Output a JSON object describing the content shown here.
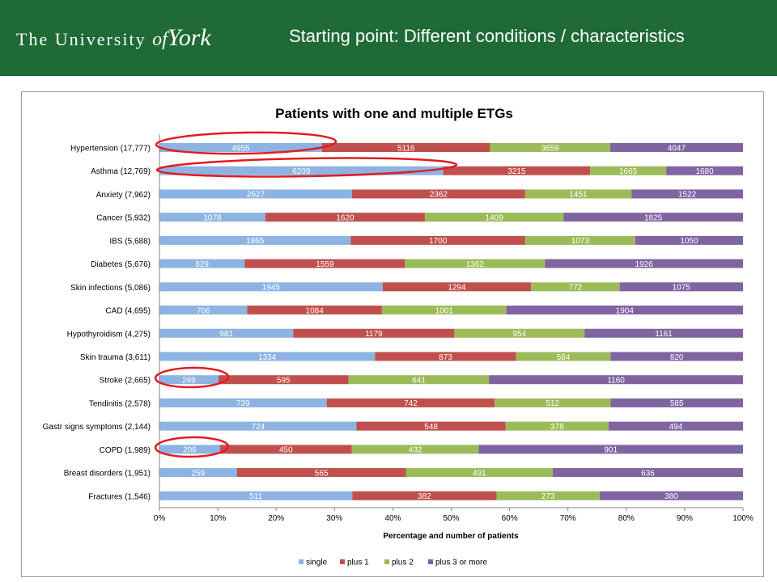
{
  "header": {
    "logo_text": "The University of York",
    "logo_parts": {
      "the": "The",
      "university": "University",
      "of": "of",
      "york": "York"
    },
    "slide_title": "Starting point: Different conditions / characteristics",
    "background_color": "#1f6a35"
  },
  "chart_data": {
    "type": "bar",
    "orientation": "horizontal",
    "stacked": "percent",
    "title": "Patients with one and multiple ETGs",
    "xlabel": "Percentage and number of patients",
    "ylabel": "",
    "xlim": [
      0,
      100
    ],
    "x_ticks": [
      "0%",
      "10%",
      "20%",
      "30%",
      "40%",
      "50%",
      "60%",
      "70%",
      "80%",
      "90%",
      "100%"
    ],
    "legend_position": "bottom",
    "grid": false,
    "categories": [
      "Hypertension (17,777)",
      "Asthma (12,769)",
      "Anxiety (7,962)",
      "Cancer (5,932)",
      "IBS (5,688)",
      "Diabetes (5,676)",
      "Skin infections (5,086)",
      "CAD (4,695)",
      "Hypothyroidism (4,275)",
      "Skin trauma (3,611)",
      "Stroke (2,665)",
      "Tendinitis (2,578)",
      "Gastr signs symptoms (2,144)",
      "COPD (1,989)",
      "Breast disorders (1,951)",
      "Fractures (1,546)"
    ],
    "series": [
      {
        "name": "single",
        "color": "#8db3e2",
        "values": [
          4955,
          6209,
          2627,
          1078,
          1865,
          829,
          1945,
          706,
          981,
          1334,
          269,
          739,
          724,
          206,
          259,
          511
        ]
      },
      {
        "name": "plus 1",
        "color": "#c0504d",
        "values": [
          5116,
          3215,
          2362,
          1620,
          1700,
          1559,
          1294,
          1084,
          1179,
          873,
          595,
          742,
          548,
          450,
          565,
          382
        ]
      },
      {
        "name": "plus 2",
        "color": "#9bbb59",
        "values": [
          3659,
          1665,
          1451,
          1409,
          1073,
          1362,
          772,
          1001,
          954,
          584,
          641,
          512,
          378,
          432,
          491,
          273
        ]
      },
      {
        "name": "plus 3 or more",
        "color": "#8064a2",
        "values": [
          4047,
          1680,
          1522,
          1825,
          1050,
          1926,
          1075,
          1904,
          1161,
          820,
          1160,
          585,
          494,
          901,
          636,
          380
        ]
      }
    ],
    "annotations": [
      {
        "type": "ellipse",
        "color": "#e31b23",
        "category": "Hypertension (17,777)"
      },
      {
        "type": "ellipse",
        "color": "#e31b23",
        "category": "Asthma (12,769)"
      },
      {
        "type": "ellipse",
        "color": "#e31b23",
        "category": "Stroke (2,665)"
      },
      {
        "type": "ellipse",
        "color": "#e31b23",
        "category": "COPD (1,989)"
      }
    ]
  }
}
